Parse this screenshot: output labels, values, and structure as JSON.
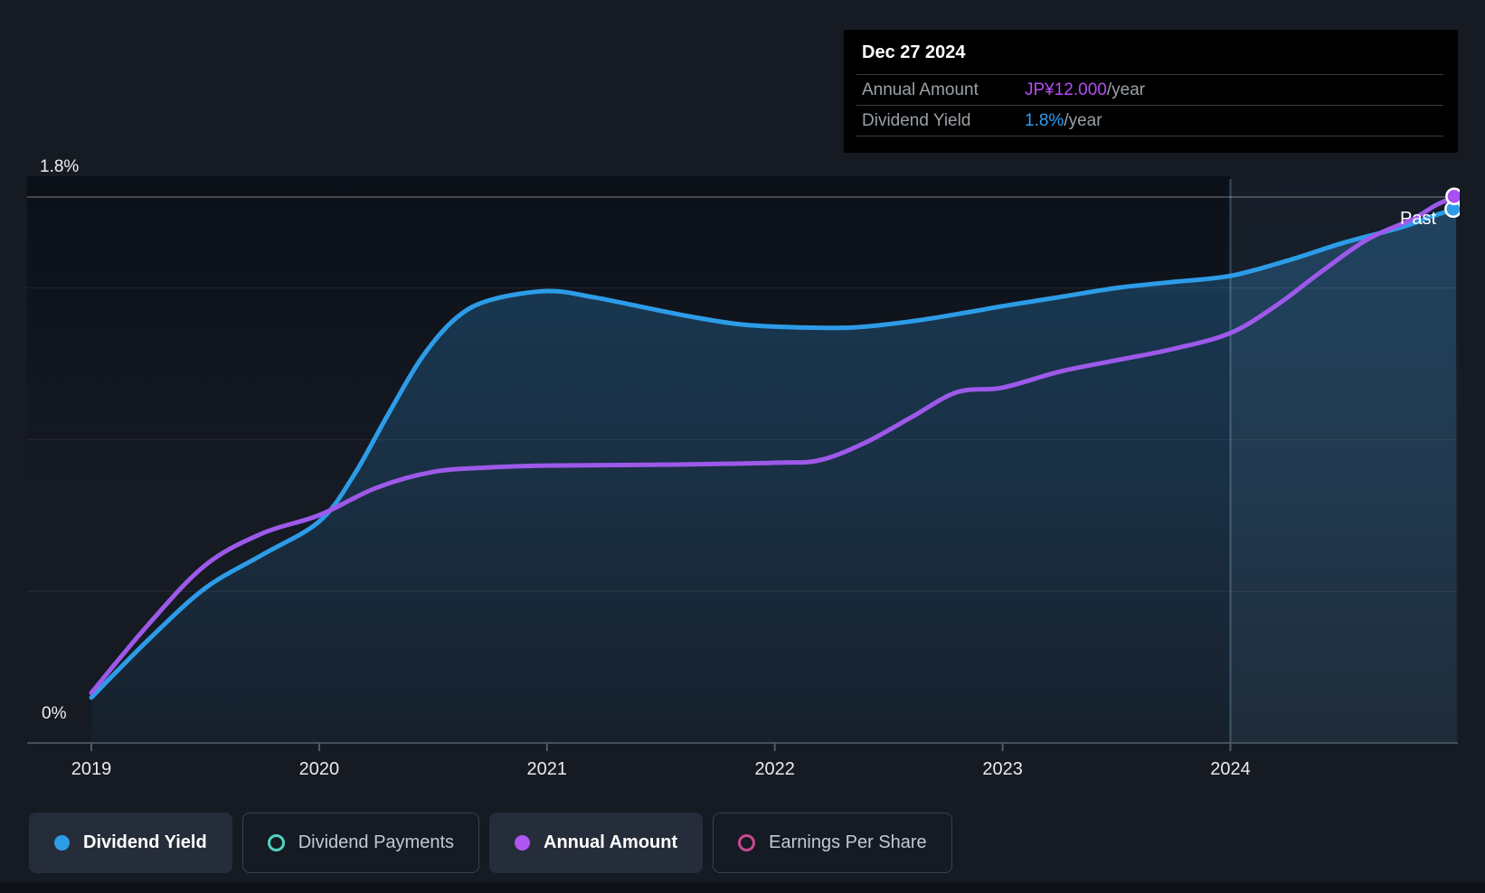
{
  "tooltip": {
    "date": "Dec 27 2024",
    "rows": [
      {
        "label": "Annual Amount",
        "value": "JP¥12.000",
        "suffix": "/year",
        "value_color": "#b44df2"
      },
      {
        "label": "Dividend Yield",
        "value": "1.8%",
        "suffix": "/year",
        "value_color": "#2e9ff0"
      }
    ]
  },
  "axis": {
    "y_top_label": "1.8%",
    "y_bottom_label": "0%",
    "x_ticks": [
      "2019",
      "2020",
      "2021",
      "2022",
      "2023",
      "2024"
    ],
    "past_label": "Past"
  },
  "legend": {
    "items": [
      {
        "label": "Dividend Yield",
        "state": "active",
        "marker": "filled",
        "color": "#2e9be6"
      },
      {
        "label": "Dividend Payments",
        "state": "inactive",
        "marker": "hollow",
        "color": "#4fd4c2"
      },
      {
        "label": "Annual Amount",
        "state": "active",
        "marker": "filled",
        "color": "#ae55f2"
      },
      {
        "label": "Earnings Per Share",
        "state": "inactive",
        "marker": "hollow",
        "color": "#c9488f"
      }
    ]
  },
  "colors": {
    "background": "#151a23",
    "dividend_yield_line": "#2d9ce8",
    "annual_amount_line": "#9d59ea",
    "annual_amount_marker": "#a74ef5",
    "grid_faint": "rgba(255,255,255,0.08)",
    "grid_top": "rgba(255,255,255,0.30)",
    "axis_line": "#454d59"
  },
  "chart_data": {
    "type": "line",
    "title": "Dividend history with yield and annual amount",
    "x_range": [
      2019,
      2025
    ],
    "x_tick_labels": [
      "2019",
      "2020",
      "2021",
      "2022",
      "2023",
      "2024"
    ],
    "left_axis": {
      "unit": "%",
      "min_label": "0%",
      "current_label": "1.8%",
      "gridline_values_pct": [
        0.5,
        1.0,
        1.5
      ],
      "highlight_value_pct": 1.8
    },
    "legend_position": "bottom",
    "grid": true,
    "past_divider_x": 2024.0,
    "current_point": {
      "date": "Dec 27 2024",
      "annual_amount": "JP¥12.000/year",
      "dividend_yield": "1.8%/year"
    },
    "series": [
      {
        "name": "Dividend Yield",
        "unit": "%",
        "color": "#2d9ce8",
        "area_fill": true,
        "points": [
          [
            2019.0,
            0.15
          ],
          [
            2019.25,
            0.34
          ],
          [
            2019.5,
            0.51
          ],
          [
            2019.75,
            0.62
          ],
          [
            2020.0,
            0.73
          ],
          [
            2020.15,
            0.88
          ],
          [
            2020.3,
            1.08
          ],
          [
            2020.45,
            1.27
          ],
          [
            2020.6,
            1.4
          ],
          [
            2020.75,
            1.46
          ],
          [
            2021.0,
            1.49
          ],
          [
            2021.2,
            1.47
          ],
          [
            2021.4,
            1.44
          ],
          [
            2021.6,
            1.41
          ],
          [
            2021.85,
            1.38
          ],
          [
            2022.1,
            1.37
          ],
          [
            2022.35,
            1.37
          ],
          [
            2022.6,
            1.39
          ],
          [
            2022.85,
            1.42
          ],
          [
            2023.0,
            1.44
          ],
          [
            2023.25,
            1.47
          ],
          [
            2023.5,
            1.5
          ],
          [
            2023.75,
            1.52
          ],
          [
            2024.0,
            1.54
          ],
          [
            2024.25,
            1.59
          ],
          [
            2024.5,
            1.65
          ],
          [
            2024.75,
            1.7
          ],
          [
            2024.9,
            1.74
          ],
          [
            2024.99,
            1.76
          ]
        ]
      },
      {
        "name": "Annual Amount",
        "unit": "JP¥/year",
        "color": "#9d59ea",
        "area_fill": false,
        "points": [
          [
            2019.0,
            1.1
          ],
          [
            2019.25,
            2.6
          ],
          [
            2019.5,
            3.9
          ],
          [
            2019.75,
            4.6
          ],
          [
            2020.0,
            5.0
          ],
          [
            2020.25,
            5.6
          ],
          [
            2020.5,
            5.95
          ],
          [
            2020.75,
            6.05
          ],
          [
            2021.0,
            6.09
          ],
          [
            2021.5,
            6.11
          ],
          [
            2022.0,
            6.15
          ],
          [
            2022.2,
            6.21
          ],
          [
            2022.4,
            6.6
          ],
          [
            2022.6,
            7.15
          ],
          [
            2022.8,
            7.7
          ],
          [
            2023.0,
            7.8
          ],
          [
            2023.25,
            8.15
          ],
          [
            2023.5,
            8.4
          ],
          [
            2023.75,
            8.65
          ],
          [
            2024.0,
            9.0
          ],
          [
            2024.2,
            9.6
          ],
          [
            2024.4,
            10.35
          ],
          [
            2024.6,
            11.05
          ],
          [
            2024.8,
            11.5
          ],
          [
            2024.9,
            11.8
          ],
          [
            2024.99,
            12.0
          ]
        ]
      }
    ]
  }
}
